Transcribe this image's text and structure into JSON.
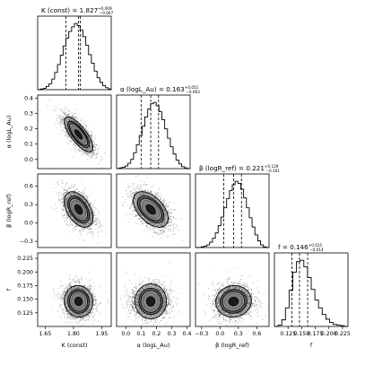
{
  "chart_data": {
    "type": "corner",
    "parameters": [
      {
        "key": "K",
        "label": "K (const)",
        "range": [
          1.61,
          2.0
        ],
        "ticks": [
          "1.65",
          "1.80",
          "1.95"
        ],
        "tick_values": [
          1.65,
          1.8,
          1.95
        ],
        "median": 1.827,
        "err_plus": 0.009,
        "err_minus": 0.067,
        "title_main": "K (const) = 1.827",
        "title_sup": "+0.009",
        "title_sub": "−0.067",
        "hist": [
          0,
          1,
          2,
          5,
          9,
          16,
          26,
          38,
          52,
          66,
          78,
          88,
          95,
          100,
          97,
          90,
          80,
          67,
          53,
          40,
          28,
          18,
          11,
          6,
          3,
          1
        ]
      },
      {
        "key": "alpha",
        "label": "α (logL_Au)",
        "range": [
          -0.06,
          0.42
        ],
        "ticks": [
          "0.0",
          "0.1",
          "0.2",
          "0.3",
          "0.4"
        ],
        "tick_values": [
          0.0,
          0.1,
          0.2,
          0.3,
          0.4
        ],
        "median": 0.163,
        "err_plus": 0.051,
        "err_minus": 0.063,
        "title_main": "α (logL_Au) = 0.163",
        "title_sup": "+0.051",
        "title_sub": "−0.063",
        "hist": [
          0,
          1,
          2,
          4,
          8,
          14,
          24,
          36,
          50,
          64,
          78,
          90,
          98,
          100,
          95,
          86,
          74,
          60,
          46,
          33,
          22,
          13,
          7,
          3,
          1,
          0
        ]
      },
      {
        "key": "beta",
        "label": "β (logR_ref)",
        "range": [
          -0.4,
          0.8
        ],
        "ticks": [
          "−0.3",
          "0.0",
          "0.3",
          "0.6"
        ],
        "tick_values": [
          -0.3,
          0.0,
          0.3,
          0.6
        ],
        "median": 0.221,
        "err_plus": 0.129,
        "err_minus": 0.161,
        "title_main": "β (logR_ref) = 0.221",
        "title_sup": "+0.129",
        "title_sub": "−0.161",
        "hist": [
          0,
          0,
          1,
          2,
          4,
          8,
          14,
          22,
          33,
          46,
          60,
          74,
          86,
          95,
          100,
          97,
          88,
          75,
          60,
          45,
          31,
          19,
          10,
          4,
          1,
          0
        ]
      },
      {
        "key": "f",
        "label": "f",
        "range": [
          0.1,
          0.235
        ],
        "ticks": [
          "0.125",
          "0.150",
          "0.175",
          "0.200",
          "0.225"
        ],
        "tick_values": [
          0.125,
          0.15,
          0.175,
          0.2,
          0.225
        ],
        "median": 0.146,
        "err_plus": 0.015,
        "err_minus": 0.014,
        "title_main": "f = 0.146",
        "title_sup": "+0.015",
        "title_sub": "−0.014",
        "hist": [
          0,
          2,
          10,
          28,
          55,
          82,
          98,
          100,
          90,
          74,
          56,
          40,
          28,
          18,
          11,
          6,
          3,
          2,
          1,
          0
        ]
      }
    ],
    "correlations": {
      "alpha|K": -0.75,
      "beta|K": -0.45,
      "beta|alpha": -0.5,
      "f|K": -0.05,
      "f|alpha": 0.0,
      "f|beta": 0.05
    },
    "grid": false
  }
}
